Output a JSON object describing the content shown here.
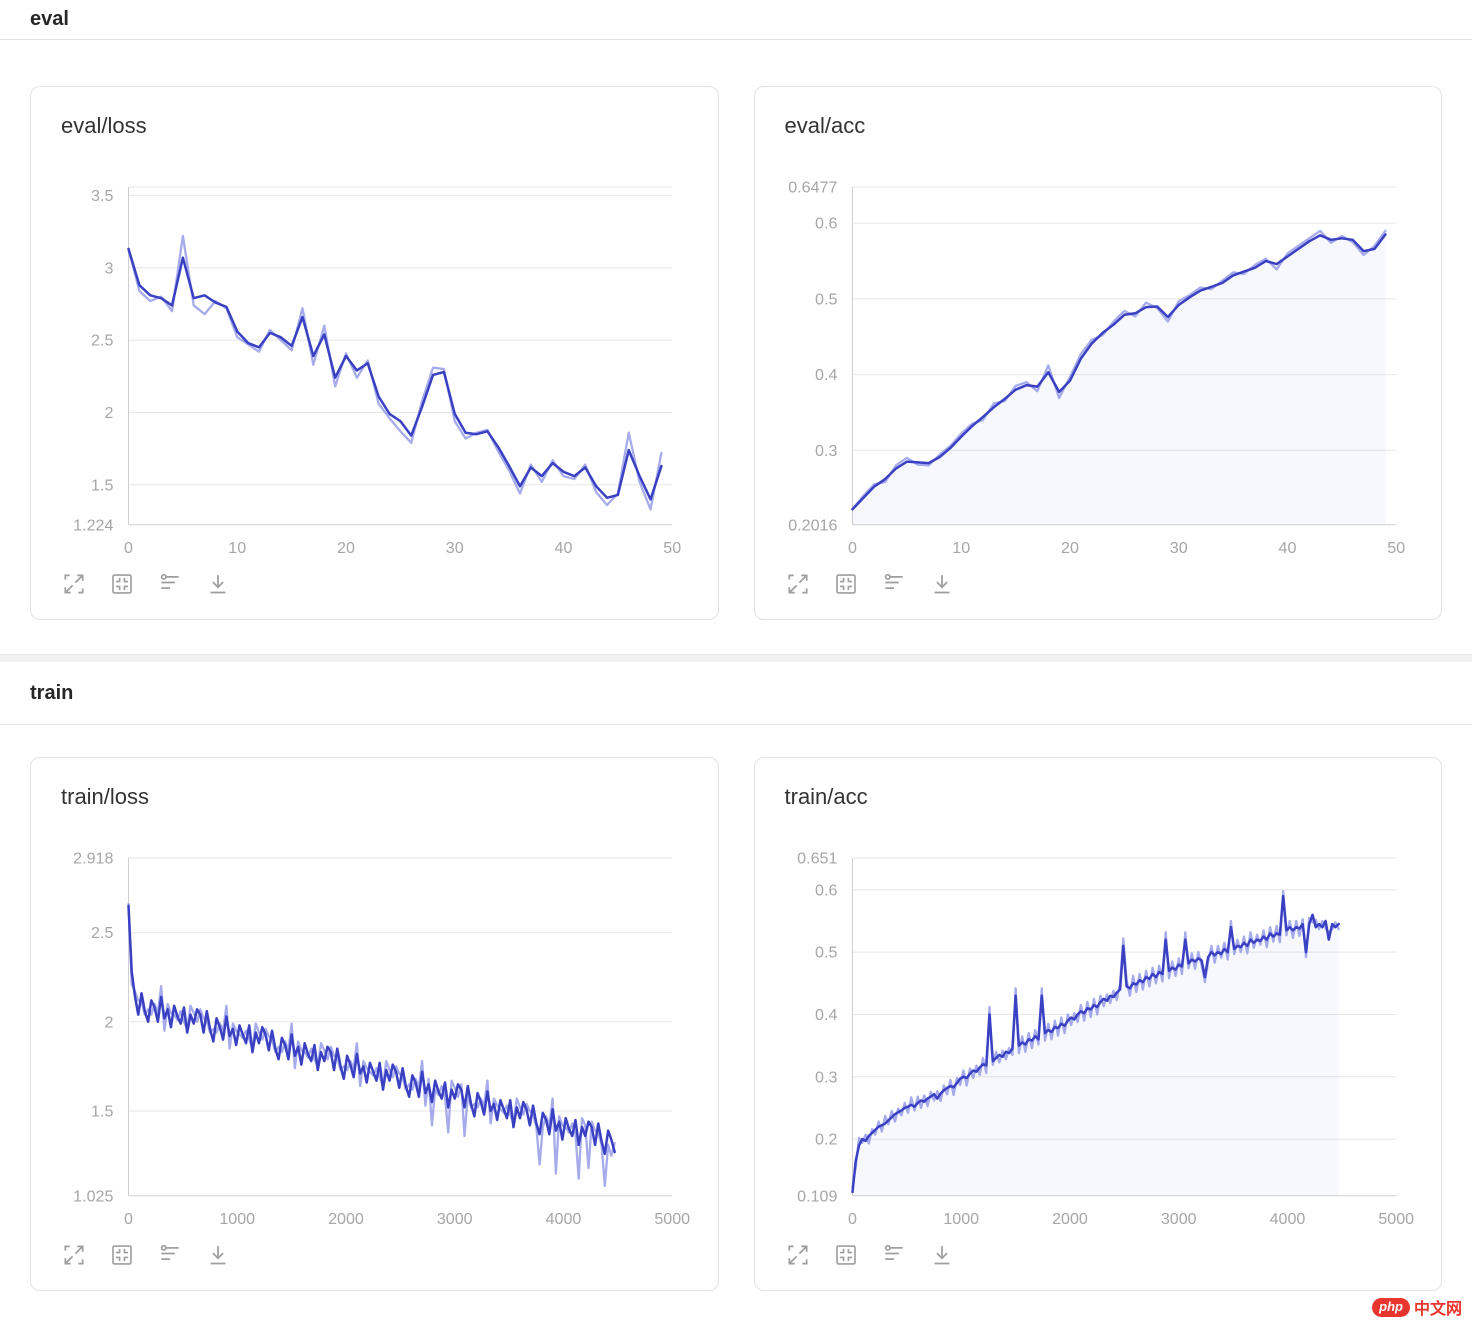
{
  "sections": [
    {
      "title": "eval"
    },
    {
      "title": "train"
    }
  ],
  "toolbar": {
    "icons": [
      "fullscreen",
      "fit-view",
      "smoothing-settings",
      "download"
    ]
  },
  "watermark": {
    "badge": "php",
    "text": "中文网"
  },
  "colors": {
    "smooth": "#3a40c2",
    "raw": "#979ce8",
    "fill": "rgba(100,120,225,0.05)",
    "grid": "#e6e6e6",
    "axis": "#cfcfcf",
    "tick": "#a6a6a6"
  },
  "chart_data": [
    {
      "type": "line",
      "title": "eval/loss",
      "legend": "off",
      "grid": "horizontal",
      "xlim": [
        0,
        50
      ],
      "xticks": [
        0,
        10,
        20,
        30,
        40,
        50
      ],
      "ymin": 1.224,
      "ymax": 3.558,
      "yticks": [
        {
          "v": 3.558,
          "label": ""
        },
        {
          "v": 3.5,
          "label": "3.5"
        },
        {
          "v": 3,
          "label": "3"
        },
        {
          "v": 2.5,
          "label": "2.5"
        },
        {
          "v": 2,
          "label": "2"
        },
        {
          "v": 1.5,
          "label": "1.5"
        },
        {
          "v": 1.224,
          "label": "1.224"
        }
      ],
      "x_start": 0,
      "x_step": 1,
      "fill": false,
      "raw": [
        3.13,
        2.84,
        2.77,
        2.8,
        2.7,
        3.22,
        2.74,
        2.68,
        2.77,
        2.72,
        2.52,
        2.47,
        2.42,
        2.57,
        2.5,
        2.43,
        2.72,
        2.33,
        2.6,
        2.18,
        2.41,
        2.24,
        2.36,
        2.06,
        1.96,
        1.87,
        1.79,
        2.08,
        2.31,
        2.3,
        1.94,
        1.82,
        1.86,
        1.88,
        1.73,
        1.6,
        1.44,
        1.64,
        1.52,
        1.67,
        1.56,
        1.54,
        1.64,
        1.45,
        1.36,
        1.44,
        1.86,
        1.52,
        1.33,
        1.72
      ],
      "smooth": [
        3.13,
        2.88,
        2.81,
        2.79,
        2.74,
        3.07,
        2.79,
        2.81,
        2.76,
        2.73,
        2.56,
        2.48,
        2.45,
        2.55,
        2.52,
        2.46,
        2.66,
        2.39,
        2.54,
        2.24,
        2.39,
        2.29,
        2.34,
        2.11,
        1.99,
        1.94,
        1.84,
        2.04,
        2.26,
        2.28,
        1.99,
        1.86,
        1.85,
        1.87,
        1.76,
        1.63,
        1.49,
        1.62,
        1.56,
        1.65,
        1.59,
        1.56,
        1.62,
        1.49,
        1.41,
        1.43,
        1.74,
        1.56,
        1.4,
        1.63
      ]
    },
    {
      "type": "line",
      "title": "eval/acc",
      "legend": "off",
      "grid": "horizontal",
      "xlim": [
        0,
        50
      ],
      "xticks": [
        0,
        10,
        20,
        30,
        40,
        50
      ],
      "ymin": 0.2016,
      "ymax": 0.6477,
      "yticks": [
        {
          "v": 0.6477,
          "label": "0.6477"
        },
        {
          "v": 0.6,
          "label": "0.6"
        },
        {
          "v": 0.5,
          "label": "0.5"
        },
        {
          "v": 0.4,
          "label": "0.4"
        },
        {
          "v": 0.3,
          "label": "0.3"
        },
        {
          "v": 0.2016,
          "label": "0.2016"
        }
      ],
      "x_start": 0,
      "x_step": 1,
      "fill": true,
      "raw": [
        0.222,
        0.24,
        0.255,
        0.258,
        0.28,
        0.29,
        0.281,
        0.28,
        0.294,
        0.306,
        0.322,
        0.335,
        0.34,
        0.362,
        0.365,
        0.385,
        0.39,
        0.378,
        0.412,
        0.369,
        0.397,
        0.427,
        0.446,
        0.452,
        0.47,
        0.484,
        0.477,
        0.495,
        0.488,
        0.47,
        0.497,
        0.505,
        0.515,
        0.513,
        0.524,
        0.535,
        0.533,
        0.545,
        0.553,
        0.539,
        0.56,
        0.57,
        0.58,
        0.59,
        0.574,
        0.583,
        0.575,
        0.558,
        0.57,
        0.59
      ],
      "smooth": [
        0.222,
        0.237,
        0.252,
        0.262,
        0.276,
        0.285,
        0.284,
        0.283,
        0.291,
        0.303,
        0.318,
        0.332,
        0.344,
        0.357,
        0.368,
        0.38,
        0.386,
        0.384,
        0.403,
        0.377,
        0.392,
        0.421,
        0.441,
        0.455,
        0.466,
        0.479,
        0.481,
        0.489,
        0.49,
        0.476,
        0.492,
        0.502,
        0.511,
        0.516,
        0.521,
        0.531,
        0.536,
        0.541,
        0.55,
        0.546,
        0.556,
        0.566,
        0.576,
        0.584,
        0.578,
        0.58,
        0.578,
        0.563,
        0.566,
        0.585
      ]
    },
    {
      "type": "line",
      "title": "train/loss",
      "legend": "off",
      "grid": "horizontal",
      "xlim": [
        0,
        5000
      ],
      "xticks": [
        0,
        1000,
        2000,
        3000,
        4000,
        5000
      ],
      "ymin": 1.025,
      "ymax": 2.918,
      "yticks": [
        {
          "v": 2.918,
          "label": "2.918"
        },
        {
          "v": 2.5,
          "label": "2.5"
        },
        {
          "v": 2,
          "label": "2"
        },
        {
          "v": 1.5,
          "label": "1.5"
        },
        {
          "v": 1.025,
          "label": "1.025"
        }
      ],
      "x_start": 0,
      "x_step": 30,
      "fill": false,
      "raw": [
        2.66,
        2.21,
        2.17,
        2.12,
        2.11,
        2.04,
        2.07,
        2.04,
        2.1,
        2.05,
        2.2,
        1.95,
        2.1,
        2.05,
        2.04,
        2.01,
        2.06,
        2.0,
        1.96,
        2.09,
        2.05,
        2.0,
        2.07,
        2.02,
        2.01,
        1.94,
        1.96,
        1.94,
        1.99,
        1.95,
        2.09,
        1.85,
        1.99,
        1.95,
        1.93,
        1.91,
        1.95,
        1.9,
        1.85,
        1.99,
        1.94,
        1.9,
        1.96,
        1.92,
        1.9,
        1.83,
        1.86,
        1.83,
        1.89,
        1.84,
        1.99,
        1.74,
        1.89,
        1.84,
        1.83,
        1.8,
        1.85,
        1.79,
        1.75,
        1.88,
        1.84,
        1.79,
        1.86,
        1.81,
        1.8,
        1.73,
        1.75,
        1.73,
        1.78,
        1.74,
        1.88,
        1.64,
        1.78,
        1.74,
        1.72,
        1.7,
        1.74,
        1.69,
        1.64,
        1.78,
        1.73,
        1.69,
        1.75,
        1.71,
        1.69,
        1.62,
        1.65,
        1.62,
        1.68,
        1.63,
        1.78,
        1.53,
        1.68,
        1.42,
        1.62,
        1.59,
        1.64,
        1.58,
        1.38,
        1.67,
        1.63,
        1.58,
        1.65,
        1.36,
        1.59,
        1.52,
        1.54,
        1.52,
        1.57,
        1.53,
        1.67,
        1.43,
        1.57,
        1.53,
        1.51,
        1.49,
        1.53,
        1.48,
        1.43,
        1.57,
        1.52,
        1.48,
        1.54,
        1.5,
        1.48,
        1.41,
        1.2,
        1.41,
        1.47,
        1.42,
        1.57,
        1.15,
        1.47,
        1.42,
        1.41,
        1.38,
        1.43,
        1.37,
        1.12,
        1.46,
        1.42,
        1.18,
        1.44,
        1.39,
        1.38,
        1.31,
        1.08,
        1.31,
        1.25,
        1.32
      ],
      "smooth": [
        2.65,
        2.28,
        2.14,
        2.04,
        2.16,
        2.06,
        2.0,
        2.12,
        2.08,
        2.0,
        2.14,
        2.02,
        2.07,
        1.97,
        2.09,
        2.03,
        1.99,
        2.08,
        1.94,
        2.04,
        1.99,
        2.07,
        2.04,
        1.94,
        2.06,
        1.96,
        1.89,
        2.02,
        1.97,
        1.9,
        2.03,
        1.92,
        1.96,
        1.87,
        1.98,
        1.93,
        1.88,
        1.98,
        1.83,
        1.94,
        1.88,
        1.97,
        1.93,
        1.84,
        1.95,
        1.85,
        1.79,
        1.91,
        1.87,
        1.79,
        1.93,
        1.81,
        1.86,
        1.76,
        1.88,
        1.82,
        1.78,
        1.87,
        1.73,
        1.83,
        1.78,
        1.86,
        1.83,
        1.73,
        1.85,
        1.75,
        1.68,
        1.81,
        1.76,
        1.69,
        1.82,
        1.71,
        1.75,
        1.66,
        1.77,
        1.72,
        1.67,
        1.77,
        1.62,
        1.73,
        1.67,
        1.76,
        1.72,
        1.63,
        1.74,
        1.64,
        1.58,
        1.7,
        1.66,
        1.58,
        1.72,
        1.6,
        1.65,
        1.55,
        1.67,
        1.61,
        1.57,
        1.66,
        1.52,
        1.62,
        1.57,
        1.65,
        1.62,
        1.52,
        1.64,
        1.54,
        1.47,
        1.6,
        1.55,
        1.48,
        1.61,
        1.5,
        1.54,
        1.45,
        1.56,
        1.51,
        1.46,
        1.56,
        1.41,
        1.52,
        1.46,
        1.55,
        1.51,
        1.42,
        1.53,
        1.43,
        1.37,
        1.49,
        1.45,
        1.37,
        1.51,
        1.39,
        1.44,
        1.34,
        1.46,
        1.4,
        1.36,
        1.45,
        1.31,
        1.41,
        1.36,
        1.44,
        1.41,
        1.31,
        1.43,
        1.33,
        1.26,
        1.39,
        1.34,
        1.27
      ]
    },
    {
      "type": "line",
      "title": "train/acc",
      "legend": "off",
      "grid": "horizontal",
      "xlim": [
        0,
        5000
      ],
      "xticks": [
        0,
        1000,
        2000,
        3000,
        4000,
        5000
      ],
      "ymin": 0.109,
      "ymax": 0.651,
      "yticks": [
        {
          "v": 0.651,
          "label": "0.651"
        },
        {
          "v": 0.6,
          "label": "0.6"
        },
        {
          "v": 0.5,
          "label": "0.5"
        },
        {
          "v": 0.4,
          "label": "0.4"
        },
        {
          "v": 0.3,
          "label": "0.3"
        },
        {
          "v": 0.2,
          "label": "0.2"
        },
        {
          "v": 0.109,
          "label": "0.109"
        }
      ],
      "x_start": 0,
      "x_step": 30,
      "fill": true,
      "raw": [
        0.123,
        0.155,
        0.202,
        0.194,
        0.207,
        0.193,
        0.216,
        0.207,
        0.228,
        0.212,
        0.237,
        0.224,
        0.245,
        0.228,
        0.249,
        0.238,
        0.258,
        0.242,
        0.267,
        0.246,
        0.268,
        0.25,
        0.27,
        0.253,
        0.276,
        0.262,
        0.277,
        0.261,
        0.286,
        0.272,
        0.295,
        0.271,
        0.298,
        0.287,
        0.31,
        0.286,
        0.313,
        0.298,
        0.318,
        0.303,
        0.33,
        0.306,
        0.412,
        0.319,
        0.34,
        0.323,
        0.342,
        0.328,
        0.346,
        0.335,
        0.442,
        0.338,
        0.365,
        0.34,
        0.37,
        0.346,
        0.375,
        0.352,
        0.442,
        0.358,
        0.385,
        0.36,
        0.39,
        0.366,
        0.395,
        0.37,
        0.4,
        0.383,
        0.402,
        0.388,
        0.415,
        0.39,
        0.42,
        0.396,
        0.425,
        0.4,
        0.43,
        0.413,
        0.432,
        0.418,
        0.438,
        0.423,
        0.45,
        0.522,
        0.455,
        0.43,
        0.462,
        0.436,
        0.465,
        0.44,
        0.47,
        0.445,
        0.475,
        0.45,
        0.478,
        0.453,
        0.532,
        0.458,
        0.485,
        0.462,
        0.49,
        0.465,
        0.532,
        0.474,
        0.498,
        0.473,
        0.5,
        0.479,
        0.452,
        0.484,
        0.51,
        0.483,
        0.51,
        0.491,
        0.515,
        0.488,
        0.55,
        0.497,
        0.52,
        0.5,
        0.525,
        0.498,
        0.532,
        0.507,
        0.528,
        0.512,
        0.535,
        0.508,
        0.54,
        0.517,
        0.542,
        0.516,
        0.598,
        0.527,
        0.55,
        0.523,
        0.55,
        0.526,
        0.553,
        0.492,
        0.555,
        0.548,
        0.552,
        0.537,
        0.55,
        0.538,
        0.532,
        0.537,
        0.548,
        0.537
      ],
      "smooth": [
        0.115,
        0.165,
        0.19,
        0.2,
        0.197,
        0.205,
        0.21,
        0.215,
        0.22,
        0.222,
        0.225,
        0.23,
        0.235,
        0.24,
        0.243,
        0.246,
        0.25,
        0.252,
        0.255,
        0.252,
        0.258,
        0.262,
        0.26,
        0.265,
        0.268,
        0.272,
        0.265,
        0.273,
        0.278,
        0.282,
        0.285,
        0.283,
        0.29,
        0.297,
        0.3,
        0.298,
        0.305,
        0.31,
        0.308,
        0.315,
        0.32,
        0.318,
        0.4,
        0.325,
        0.33,
        0.335,
        0.332,
        0.34,
        0.338,
        0.345,
        0.43,
        0.35,
        0.355,
        0.352,
        0.36,
        0.358,
        0.365,
        0.36,
        0.43,
        0.37,
        0.375,
        0.372,
        0.38,
        0.378,
        0.385,
        0.382,
        0.39,
        0.395,
        0.392,
        0.4,
        0.405,
        0.402,
        0.41,
        0.408,
        0.415,
        0.412,
        0.42,
        0.425,
        0.422,
        0.43,
        0.428,
        0.435,
        0.44,
        0.51,
        0.445,
        0.442,
        0.45,
        0.448,
        0.455,
        0.452,
        0.46,
        0.457,
        0.465,
        0.46,
        0.468,
        0.465,
        0.52,
        0.47,
        0.475,
        0.472,
        0.48,
        0.477,
        0.52,
        0.482,
        0.488,
        0.485,
        0.49,
        0.487,
        0.46,
        0.492,
        0.5,
        0.495,
        0.5,
        0.497,
        0.505,
        0.5,
        0.54,
        0.505,
        0.51,
        0.508,
        0.515,
        0.51,
        0.52,
        0.515,
        0.52,
        0.518,
        0.525,
        0.52,
        0.53,
        0.525,
        0.53,
        0.528,
        0.59,
        0.535,
        0.54,
        0.535,
        0.54,
        0.538,
        0.545,
        0.5,
        0.545,
        0.56,
        0.54,
        0.545,
        0.54,
        0.55,
        0.52,
        0.545,
        0.54,
        0.545
      ]
    }
  ]
}
